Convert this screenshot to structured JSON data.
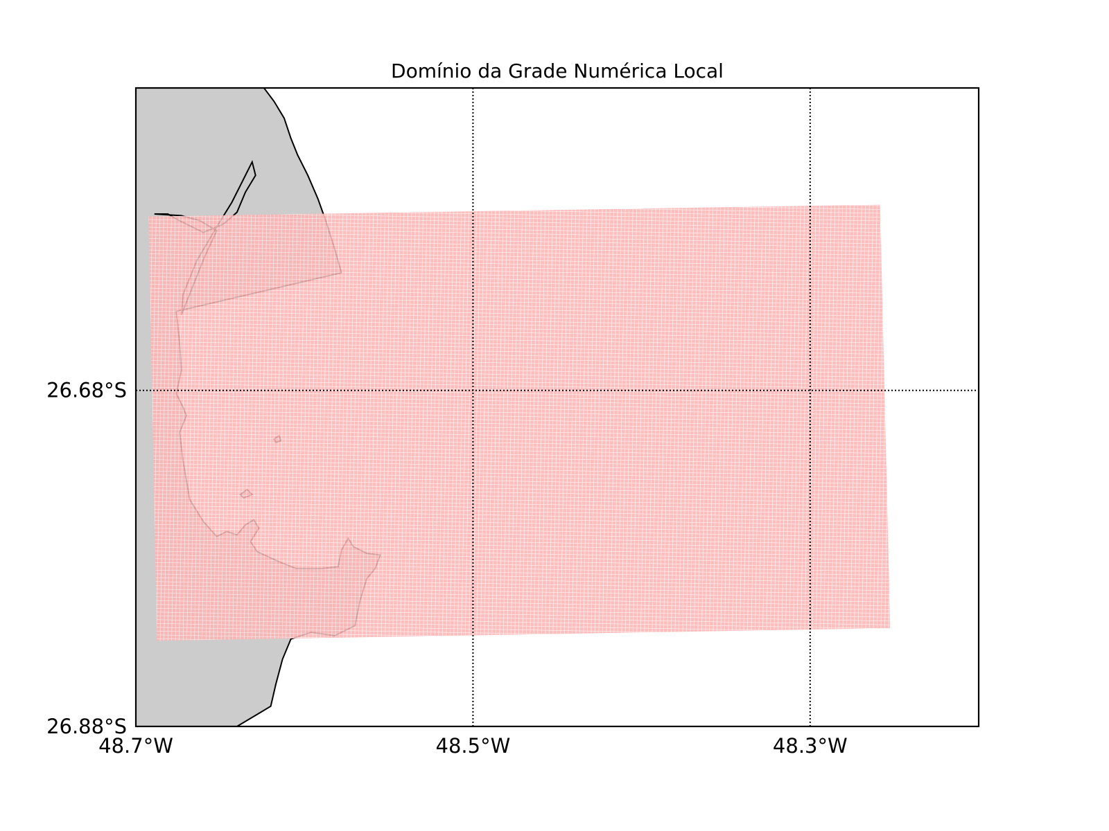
{
  "title": "Domínio da Grade Numérica Local",
  "x_axis": {
    "min": -48.7,
    "max": -48.2,
    "ticks": [
      {
        "value": -48.7,
        "label": "48.7°W"
      },
      {
        "value": -48.5,
        "label": "48.5°W"
      },
      {
        "value": -48.3,
        "label": "48.3°W"
      }
    ]
  },
  "y_axis": {
    "min": -26.88,
    "max": -26.5,
    "ticks": [
      {
        "value": -26.68,
        "label": "26.68°S"
      },
      {
        "value": -26.88,
        "label": "26.88°S"
      }
    ]
  },
  "grid": {
    "style": "dotted",
    "color": "#000000"
  },
  "colors": {
    "land": "#cccccc",
    "coast": "#000000",
    "grid_domain": "#ffb3b3",
    "grid_lines": "#ffffff"
  },
  "grid_domain": {
    "corners": [
      {
        "lon": -48.6925,
        "lat": -26.5765
      },
      {
        "lon": -48.2585,
        "lat": -26.5695
      },
      {
        "lon": -48.2525,
        "lat": -26.8215
      },
      {
        "lon": -48.6875,
        "lat": -26.829
      }
    ]
  },
  "coastline": [
    {
      "lon": -48.7,
      "lat": -26.5
    },
    {
      "lon": -48.624,
      "lat": -26.5
    },
    {
      "lon": -48.618,
      "lat": -26.508
    },
    {
      "lon": -48.612,
      "lat": -26.518
    },
    {
      "lon": -48.608,
      "lat": -26.53
    },
    {
      "lon": -48.604,
      "lat": -26.54
    },
    {
      "lon": -48.598,
      "lat": -26.552
    },
    {
      "lon": -48.592,
      "lat": -26.566
    },
    {
      "lon": -48.587,
      "lat": -26.58
    },
    {
      "lon": -48.582,
      "lat": -26.596
    },
    {
      "lon": -48.578,
      "lat": -26.61
    },
    {
      "lon": -48.676,
      "lat": -26.633
    },
    {
      "lon": -48.674,
      "lat": -26.652
    },
    {
      "lon": -48.673,
      "lat": -26.668
    },
    {
      "lon": -48.676,
      "lat": -26.682
    },
    {
      "lon": -48.672,
      "lat": -26.69
    },
    {
      "lon": -48.67,
      "lat": -26.695
    },
    {
      "lon": -48.674,
      "lat": -26.705
    },
    {
      "lon": -48.672,
      "lat": -26.722
    },
    {
      "lon": -48.668,
      "lat": -26.745
    },
    {
      "lon": -48.66,
      "lat": -26.758
    },
    {
      "lon": -48.652,
      "lat": -26.767
    },
    {
      "lon": -48.646,
      "lat": -26.764
    },
    {
      "lon": -48.64,
      "lat": -26.766
    },
    {
      "lon": -48.635,
      "lat": -26.76
    },
    {
      "lon": -48.63,
      "lat": -26.757
    },
    {
      "lon": -48.627,
      "lat": -26.762
    },
    {
      "lon": -48.632,
      "lat": -26.77
    },
    {
      "lon": -48.628,
      "lat": -26.776
    },
    {
      "lon": -48.615,
      "lat": -26.782
    },
    {
      "lon": -48.605,
      "lat": -26.786
    },
    {
      "lon": -48.59,
      "lat": -26.786
    },
    {
      "lon": -48.58,
      "lat": -26.785
    },
    {
      "lon": -48.578,
      "lat": -26.775
    },
    {
      "lon": -48.574,
      "lat": -26.768
    },
    {
      "lon": -48.571,
      "lat": -26.773
    },
    {
      "lon": -48.563,
      "lat": -26.777
    },
    {
      "lon": -48.555,
      "lat": -26.778
    },
    {
      "lon": -48.558,
      "lat": -26.786
    },
    {
      "lon": -48.563,
      "lat": -26.792
    },
    {
      "lon": -48.567,
      "lat": -26.805
    },
    {
      "lon": -48.57,
      "lat": -26.82
    },
    {
      "lon": -48.582,
      "lat": -26.826
    },
    {
      "lon": -48.596,
      "lat": -26.824
    },
    {
      "lon": -48.608,
      "lat": -26.828
    },
    {
      "lon": -48.613,
      "lat": -26.84
    },
    {
      "lon": -48.617,
      "lat": -26.855
    },
    {
      "lon": -48.62,
      "lat": -26.868
    },
    {
      "lon": -48.64,
      "lat": -26.88
    },
    {
      "lon": -48.7,
      "lat": -26.88
    }
  ],
  "lagoon_strip": [
    {
      "lon": -48.689,
      "lat": -26.575
    },
    {
      "lon": -48.681,
      "lat": -26.575
    },
    {
      "lon": -48.676,
      "lat": -26.578
    },
    {
      "lon": -48.668,
      "lat": -26.582
    },
    {
      "lon": -48.66,
      "lat": -26.586
    },
    {
      "lon": -48.648,
      "lat": -26.581
    },
    {
      "lon": -48.64,
      "lat": -26.574
    },
    {
      "lon": -48.635,
      "lat": -26.562
    },
    {
      "lon": -48.629,
      "lat": -26.552
    },
    {
      "lon": -48.631,
      "lat": -26.544
    },
    {
      "lon": -48.637,
      "lat": -26.556
    },
    {
      "lon": -48.643,
      "lat": -26.568
    },
    {
      "lon": -48.651,
      "lat": -26.581
    },
    {
      "lon": -48.664,
      "lat": -26.603
    },
    {
      "lon": -48.672,
      "lat": -26.623
    },
    {
      "lon": -48.673,
      "lat": -26.635
    },
    {
      "lon": -48.667,
      "lat": -26.62
    },
    {
      "lon": -48.659,
      "lat": -26.6
    },
    {
      "lon": -48.652,
      "lat": -26.585
    },
    {
      "lon": -48.662,
      "lat": -26.579
    },
    {
      "lon": -48.673,
      "lat": -26.576
    }
  ],
  "islands": [
    [
      {
        "lon": -48.618,
        "lat": -26.709
      },
      {
        "lon": -48.615,
        "lat": -26.707
      },
      {
        "lon": -48.614,
        "lat": -26.71
      },
      {
        "lon": -48.617,
        "lat": -26.711
      }
    ],
    [
      {
        "lon": -48.638,
        "lat": -26.742
      },
      {
        "lon": -48.634,
        "lat": -26.739
      },
      {
        "lon": -48.631,
        "lat": -26.742
      },
      {
        "lon": -48.636,
        "lat": -26.744
      }
    ]
  ]
}
